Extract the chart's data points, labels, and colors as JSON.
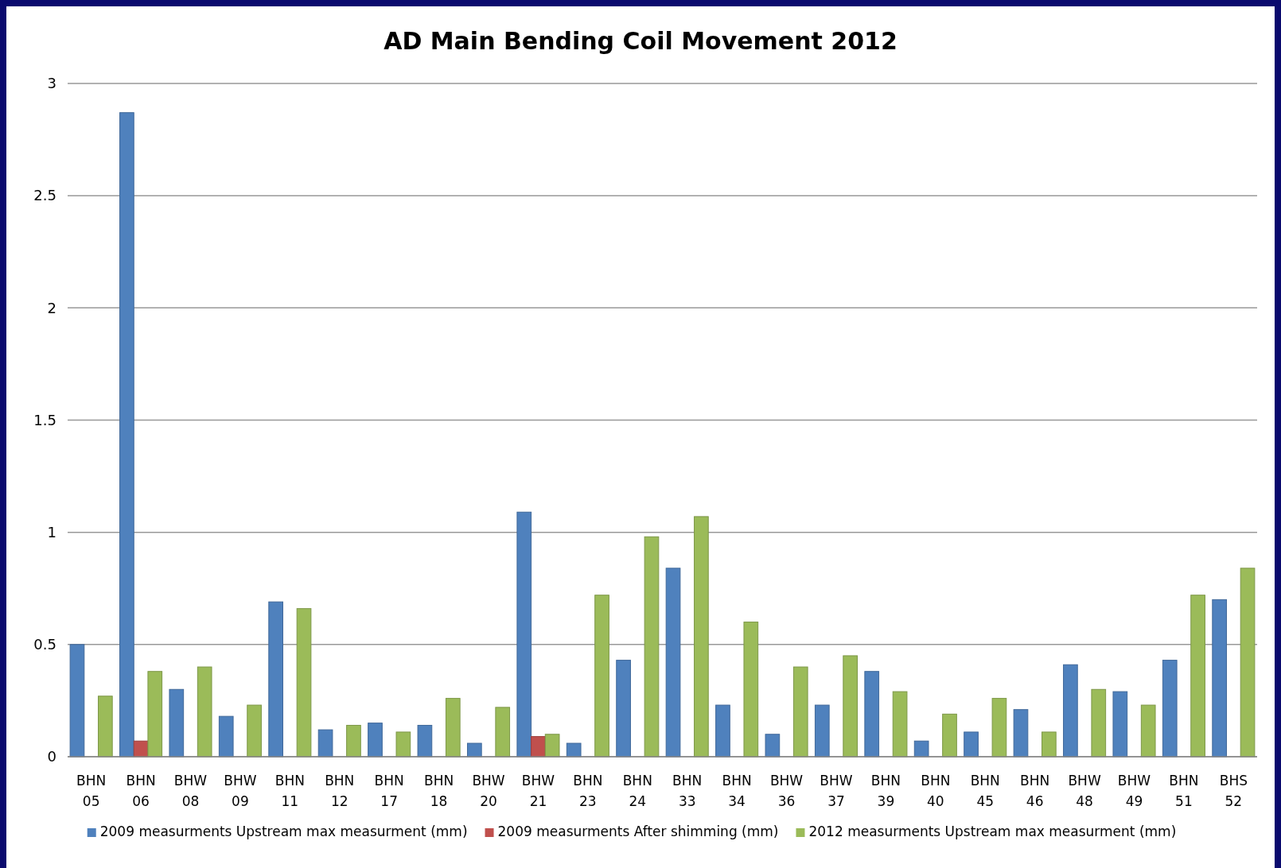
{
  "chart_data": {
    "type": "bar",
    "title": "AD Main Bending Coil Movement 2012",
    "categories": [
      "BHN 05",
      "BHN 06",
      "BHW 08",
      "BHW 09",
      "BHN 11",
      "BHN 12",
      "BHN 17",
      "BHN 18",
      "BHW 20",
      "BHW 21",
      "BHN 23",
      "BHN 24",
      "BHN 33",
      "BHN 34",
      "BHW 36",
      "BHW 37",
      "BHN 39",
      "BHN 40",
      "BHN 45",
      "BHN 46",
      "BHW 48",
      "BHW 49",
      "BHN 51",
      "BHS 52"
    ],
    "series": [
      {
        "name": "2009 measurments Upstream max measurment (mm)",
        "color": "#4f81bd",
        "values": [
          0.5,
          2.87,
          0.3,
          0.18,
          0.69,
          0.12,
          0.15,
          0.14,
          0.06,
          1.09,
          0.06,
          0.43,
          0.84,
          0.23,
          0.1,
          0.23,
          0.38,
          0.07,
          0.11,
          0.21,
          0.41,
          0.29,
          0.43,
          0.7
        ]
      },
      {
        "name": "2009 measurments After shimming (mm)",
        "color": "#c0504d",
        "values": [
          null,
          0.07,
          null,
          null,
          null,
          null,
          null,
          null,
          null,
          0.09,
          null,
          null,
          null,
          null,
          null,
          null,
          null,
          null,
          null,
          null,
          null,
          null,
          null,
          null
        ]
      },
      {
        "name": "2012 measurments Upstream max measurment (mm)",
        "color": "#9bbb59",
        "values": [
          0.27,
          0.38,
          0.4,
          0.23,
          0.66,
          0.14,
          0.11,
          0.26,
          0.22,
          0.1,
          0.72,
          0.98,
          1.07,
          0.6,
          0.4,
          0.45,
          0.29,
          0.19,
          0.26,
          0.11,
          0.3,
          0.23,
          0.72,
          0.84
        ]
      }
    ],
    "ylim": [
      0,
      3
    ],
    "yticks": [
      0,
      0.5,
      1,
      1.5,
      2,
      2.5,
      3
    ],
    "grid": "y",
    "legend": "bottom"
  }
}
